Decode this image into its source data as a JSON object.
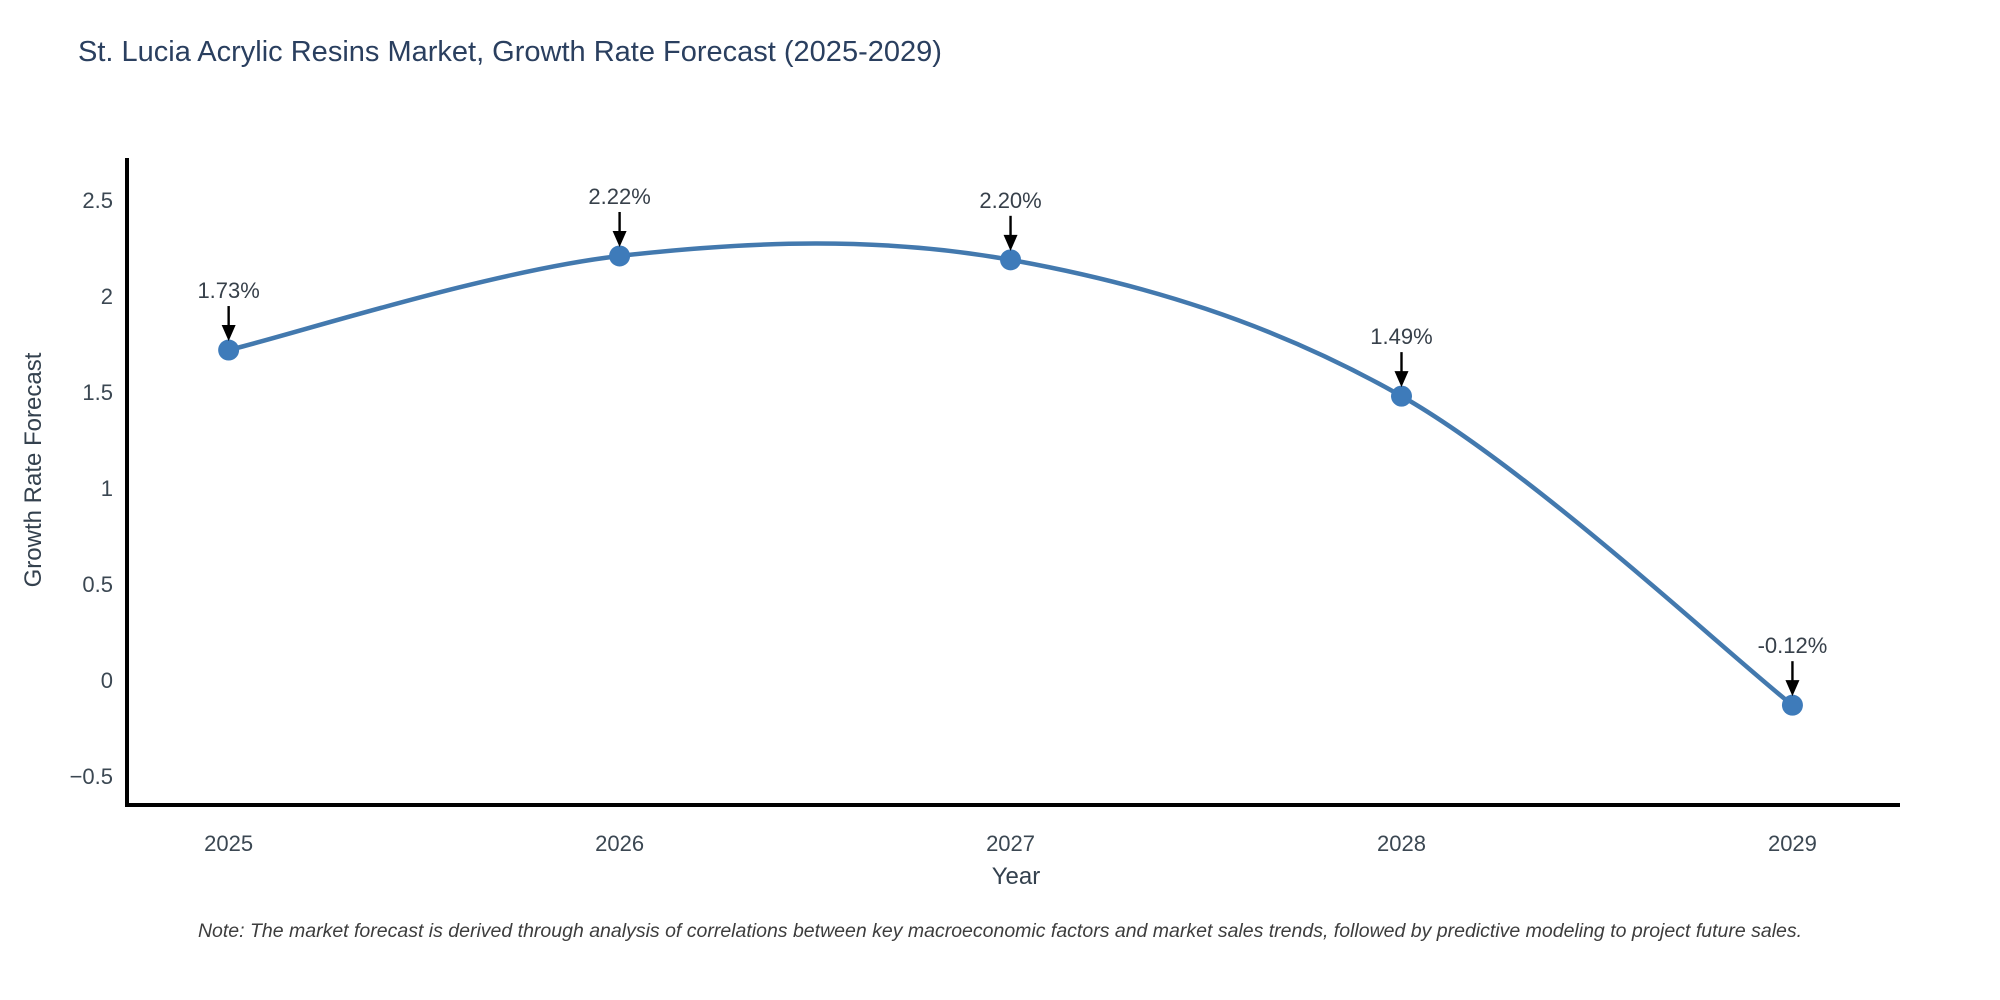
{
  "title": "St. Lucia Acrylic Resins Market, Growth Rate Forecast (2025-2029)",
  "note": "Note: The market forecast is derived through analysis of correlations between key macroeconomic factors and market sales trends, followed by predictive modeling to project future sales.",
  "chart_data": {
    "type": "line",
    "line_shape": "spline",
    "title": "St. Lucia Acrylic Resins Market, Growth Rate Forecast (2025-2029)",
    "xlabel": "Year",
    "ylabel": "Growth Rate Forecast",
    "x": [
      2025,
      2026,
      2027,
      2028,
      2029
    ],
    "values": [
      1.73,
      2.22,
      2.2,
      1.49,
      -0.12
    ],
    "point_labels": [
      "1.73%",
      "2.22%",
      "2.20%",
      "1.49%",
      "-0.12%"
    ],
    "x_tick_labels": [
      "2025",
      "2026",
      "2027",
      "2028",
      "2029"
    ],
    "y_ticks": [
      2.5,
      2,
      1.5,
      1,
      0.5,
      0,
      -0.5
    ],
    "y_tick_labels": [
      "2.5",
      "2",
      "1.5",
      "1",
      "0.5",
      "0",
      "−0.5"
    ],
    "xlim": [
      2024.74,
      2029.27
    ],
    "ylim": [
      -0.64,
      2.72
    ],
    "grid": false,
    "legend": "none",
    "colors": {
      "line": "#4379ae",
      "marker": "#3e7bba",
      "axis": "#000000",
      "tick_text": "#3b4752",
      "annotation_text": "#37404a",
      "annotation_arrow": "#000000",
      "title_text": "#2a3f5f"
    }
  }
}
